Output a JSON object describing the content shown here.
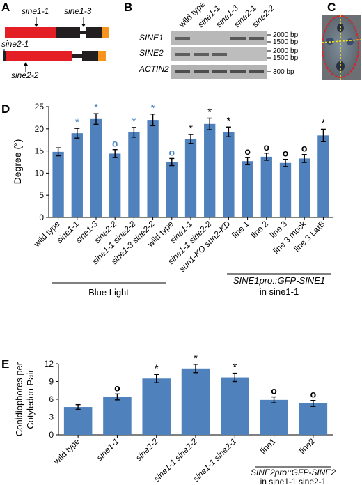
{
  "panel_labels": {
    "A": "A",
    "B": "B",
    "C": "C",
    "D": "D",
    "E": "E"
  },
  "panel_a": {
    "labels": {
      "sine1_1": "sine1-1",
      "sine1_3": "sine1-3",
      "sine2_1": "sine2-1",
      "sine2_2": "sine2-2"
    },
    "colors": {
      "exon": "#e31e24",
      "intron": "#231f20",
      "utr": "#f7941d"
    }
  },
  "panel_b": {
    "lanes": [
      "wild type",
      "sine1-1",
      "sine1-3",
      "sine2-1",
      "sine2-2"
    ],
    "rows": [
      "SINE1",
      "SINE2",
      "ACTIN2"
    ],
    "size_markers": {
      "sine1_top": "2000 bp",
      "sine1_bottom": "1500 bp",
      "sine2_top": "2000 bp",
      "sine2_bottom": "1500 bp",
      "actin": "300 bp"
    }
  },
  "chart_data": [
    {
      "type": "bar",
      "panel": "D",
      "ylabel": "Degree (°)",
      "ylim": [
        0,
        25
      ],
      "yticks": [
        0,
        5,
        10,
        15,
        20,
        25
      ],
      "categories": [
        "wild type",
        "sine1-1",
        "sine1-3",
        "sine2-2",
        "sine1-1 sine2-2",
        "sine1-3 sine2-2",
        "wild type",
        "sine1-1",
        "sine1-1 sine2-2",
        "sun1-KO sun2-KD",
        "line 1",
        "line 2",
        "line 3",
        "line 3 mock",
        "line 3 LatB"
      ],
      "values": [
        14.8,
        19.0,
        22.2,
        14.4,
        19.2,
        22.0,
        12.5,
        17.7,
        21.1,
        19.3,
        12.7,
        13.7,
        12.3,
        13.3,
        18.5
      ],
      "errors": [
        0.9,
        1.1,
        1.2,
        0.9,
        1.1,
        1.3,
        0.8,
        1.0,
        1.3,
        1.1,
        0.8,
        0.8,
        0.8,
        0.9,
        1.4
      ],
      "annotations": [
        "",
        "*",
        "*",
        "o",
        "*",
        "*",
        "o",
        "*",
        "*",
        "*",
        "o",
        "o",
        "o",
        "o",
        "*"
      ],
      "annotation_colors": [
        "",
        "#4a86c5",
        "#4a86c5",
        "#4a86c5",
        "#4a86c5",
        "#4a86c5",
        "#4a86c5",
        "#000000",
        "#000000",
        "#000000",
        "#000000",
        "#000000",
        "#000000",
        "#000000",
        "#000000"
      ],
      "bar_color": "#4f81bd",
      "group_labels": {
        "blue_light": "Blue Light",
        "sine1pro_line1": "SINE1pro::GFP-SINE1",
        "sine1pro_line2": "in sine1-1"
      }
    },
    {
      "type": "bar",
      "panel": "E",
      "ylabel": "Conidiophores per Cotyledon Pair",
      "ylabel_lines": [
        "Conidiophores per",
        "Cotyledon Pair"
      ],
      "ylim": [
        0,
        12
      ],
      "yticks": [
        0,
        3,
        6,
        9,
        12
      ],
      "categories": [
        "wild type",
        "sine1-1",
        "sine2-2",
        "sine1-1 sine2-2",
        "sine1-1 sine2-1",
        "line1",
        "line2"
      ],
      "values": [
        4.7,
        6.4,
        9.5,
        11.2,
        9.7,
        5.9,
        5.3
      ],
      "errors": [
        0.4,
        0.5,
        0.7,
        0.7,
        0.7,
        0.5,
        0.5
      ],
      "annotations": [
        "",
        "o",
        "*",
        "*",
        "*",
        "o",
        "o"
      ],
      "bar_color": "#4f81bd",
      "group_labels": {
        "sine2pro_line1": "SINE2pro::GFP-SINE2",
        "sine2pro_line2": "in sine1-1 sine2-1"
      }
    }
  ]
}
